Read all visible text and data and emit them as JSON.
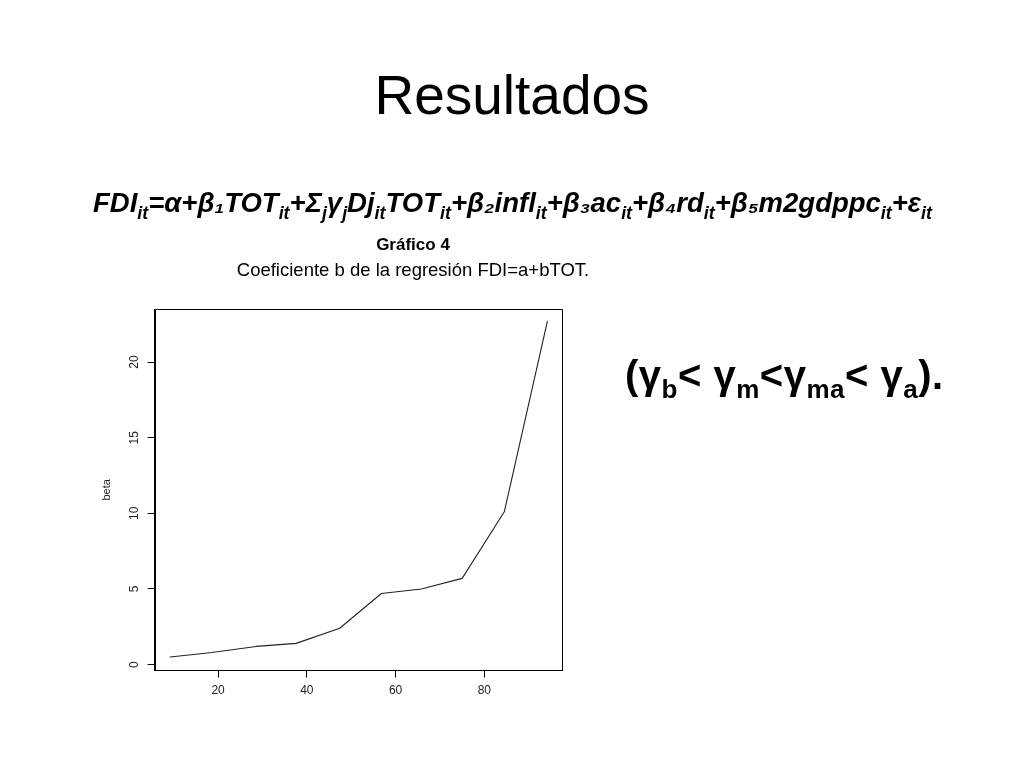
{
  "chart_data": {
    "type": "line",
    "title": "Gráfico 4",
    "subtitle": "Coeficiente b de la regresión FDI=a+bTOT.",
    "ylabel": "beta",
    "annotations": [
      "Resultados",
      "FDI$_{it}$=α+β₁TOT$_{it}$+Σ$_{j}$γ$_{j}$Dj$_{it}$TOT$_{it}$+β₂infl$_{it}$+β₃ac$_{it}$+β₄rd$_{it}$+β₅m2gdppc$_{it}$+ε$_{it}$",
      "(γ$_{b}$< γ$_{m}$<γ$_{ma}$< γ$_{a}$)."
    ],
    "x": [
      9.2,
      18.6,
      28.6,
      37.6,
      47.4,
      56.8,
      65.8,
      75.0,
      84.5,
      94.2
    ],
    "values": [
      0.5,
      0.8,
      1.2,
      1.4,
      2.4,
      4.7,
      5.0,
      5.7,
      10.1,
      22.7
    ],
    "color": "#222222",
    "xlim": [
      5.7,
      97.5
    ],
    "xticks": [
      20,
      40,
      60,
      80
    ],
    "ylim": [
      -0.4,
      23.5
    ],
    "yticks": [
      0,
      5,
      10,
      15,
      20
    ],
    "legend": false
  }
}
